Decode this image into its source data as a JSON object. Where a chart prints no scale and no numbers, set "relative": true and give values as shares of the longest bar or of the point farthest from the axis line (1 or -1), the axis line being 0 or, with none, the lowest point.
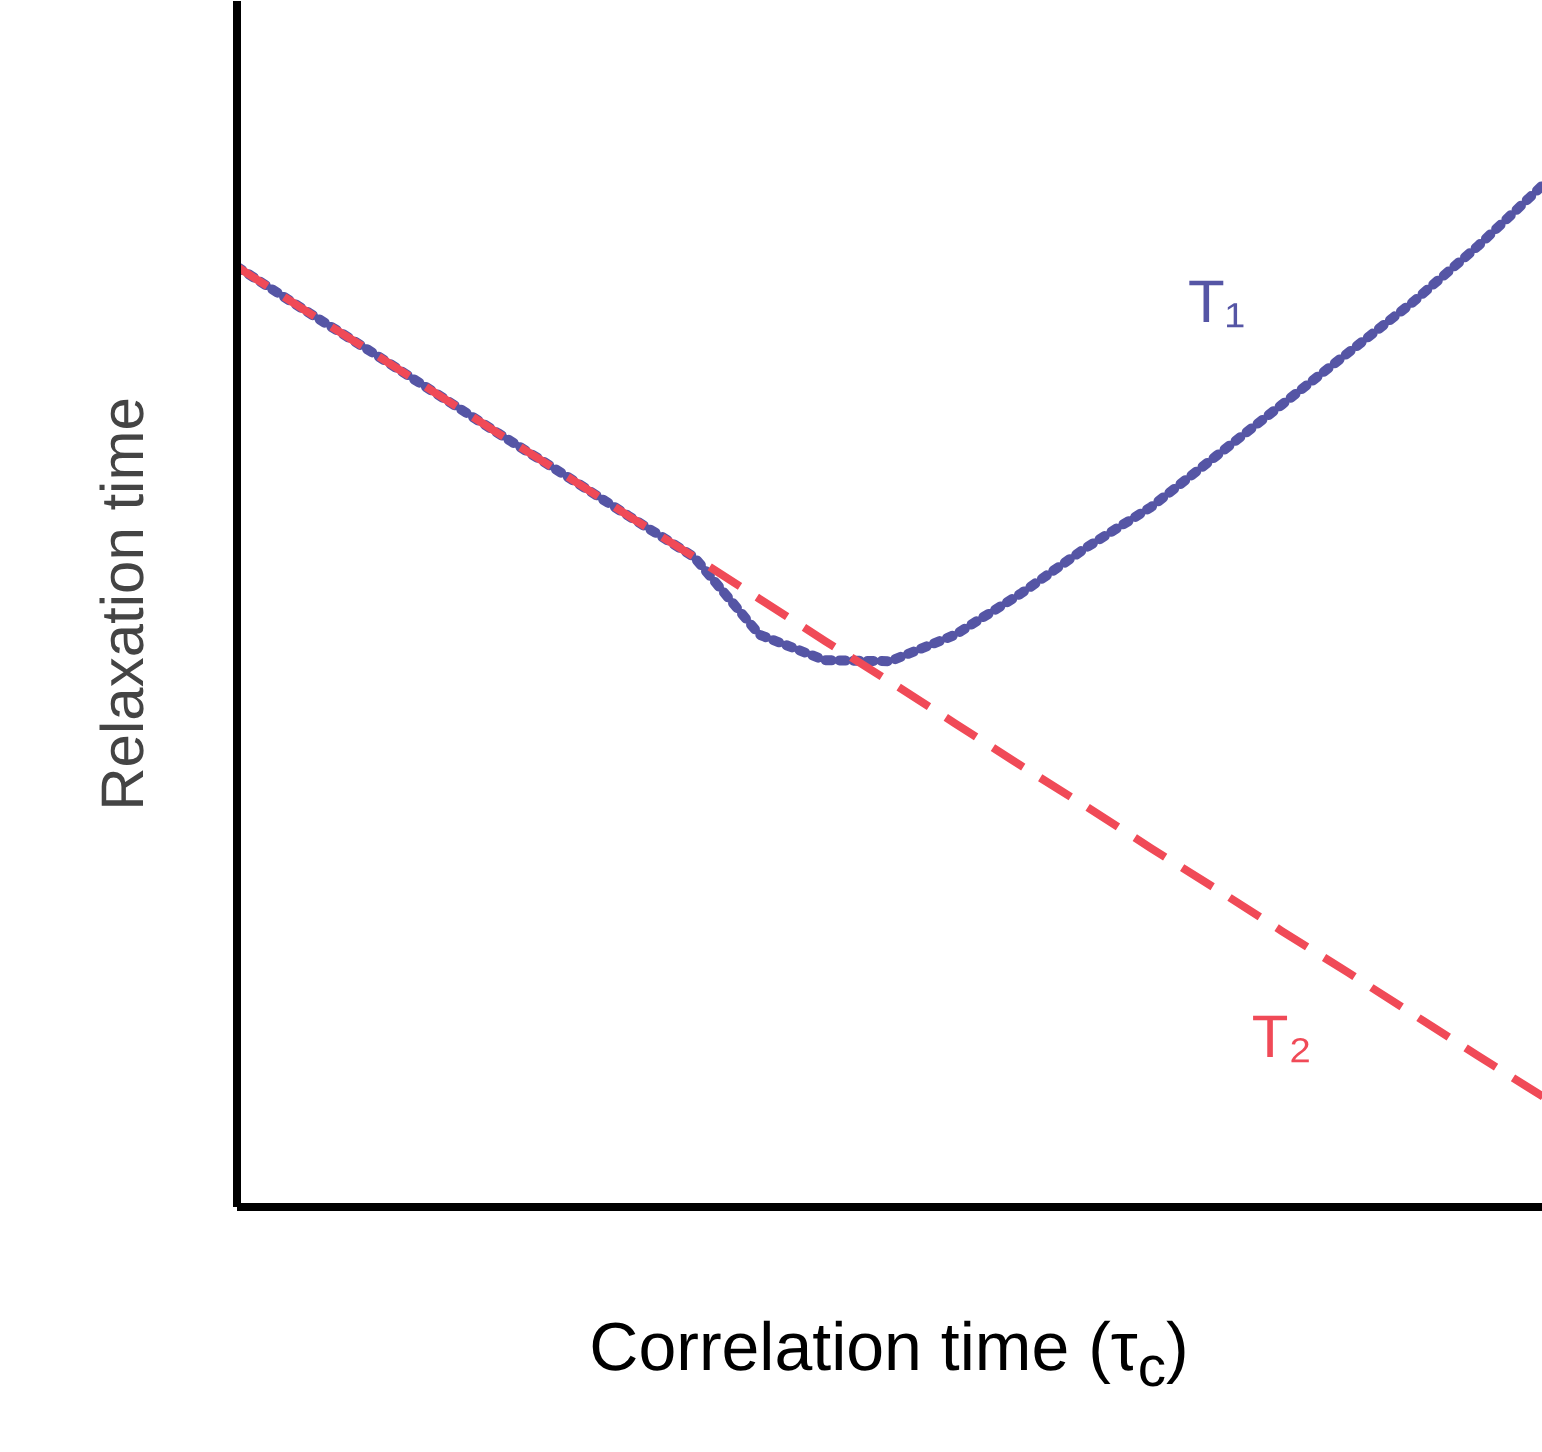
{
  "chart_data": {
    "type": "line",
    "relative": true,
    "xlabel": "Correlation time (τ$_{c}$)",
    "ylabel": "Relaxation time",
    "grid": false,
    "legend": false,
    "marker": "none",
    "categories": [
      null,
      null,
      null,
      null,
      null,
      null,
      null,
      null,
      null,
      null,
      null,
      null,
      null,
      null,
      null,
      null,
      null,
      null,
      null,
      null,
      null
    ],
    "series": [
      {
        "name": "T₁",
        "color": "#5555a5",
        "line_style": "dotted",
        "values": [
          0.92,
          0.879,
          0.839,
          0.798,
          0.757,
          0.717,
          0.676,
          0.636,
          0.56,
          0.535,
          0.534,
          0.56,
          0.6,
          0.645,
          0.685,
          0.735,
          0.785,
          0.835,
          0.885,
          0.94,
          1.0
        ]
      },
      {
        "name": "T₂",
        "color": "#f04a57",
        "line_style": "dashed",
        "values": [
          0.92,
          0.879,
          0.839,
          0.798,
          0.757,
          0.717,
          0.676,
          0.636,
          0.595,
          0.554,
          0.514,
          0.473,
          0.432,
          0.392,
          0.351,
          0.311,
          0.27,
          0.23,
          0.189,
          0.148,
          0.108
        ]
      }
    ]
  }
}
